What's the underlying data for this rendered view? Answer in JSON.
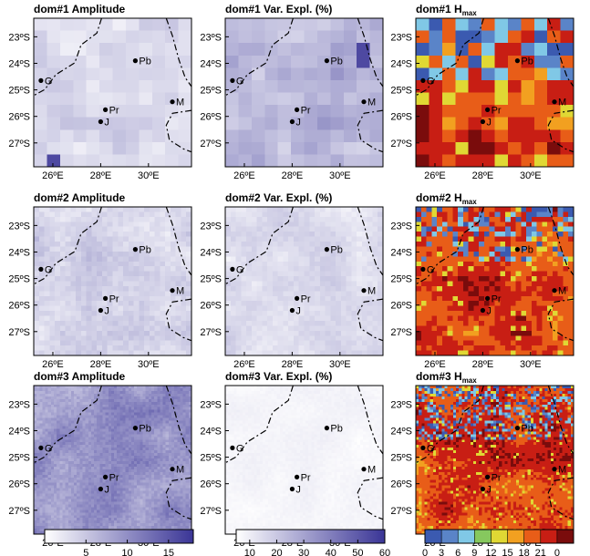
{
  "chart_data": [
    {
      "id": "p11",
      "type": "heatmap",
      "title": "dom#1 Amplitude",
      "colormap": "amp",
      "res": 12,
      "lo": 0.05,
      "hi": 0.35,
      "seed": 11,
      "spot": [
        0.1,
        0.96,
        0.9
      ],
      "xticks": [
        "26ºE",
        "28ºE",
        "30ºE"
      ],
      "yticks": [
        "23ºS",
        "24ºS",
        "25ºS",
        "26ºS",
        "27ºS"
      ]
    },
    {
      "id": "p12",
      "type": "heatmap",
      "title": "dom#1 Var. Expl. (%)",
      "colormap": "var",
      "res": 12,
      "lo": 0.18,
      "hi": 0.55,
      "seed": 12,
      "spot": [
        0.82,
        0.2,
        0.9
      ],
      "xticks": [
        "26ºE",
        "28ºE",
        "30ºE"
      ],
      "yticks": [
        "23ºS",
        "24ºS",
        "25ºS",
        "26ºS",
        "27ºS"
      ]
    },
    {
      "id": "p13",
      "type": "heatmap",
      "title": "dom#1 H",
      "title_sub": "max",
      "colormap": "hmax",
      "res": 12,
      "seed": 13,
      "xticks": [
        "26ºE",
        "28ºE",
        "30ºE"
      ],
      "yticks": [
        "23ºS",
        "24ºS",
        "25ºS",
        "26ºS",
        "27ºS"
      ]
    },
    {
      "id": "p21",
      "type": "heatmap",
      "title": "dom#2 Amplitude",
      "colormap": "amp",
      "res": 30,
      "lo": 0.05,
      "hi": 0.4,
      "seed": 21,
      "xticks": [
        "26ºE",
        "28ºE",
        "30ºE"
      ],
      "yticks": [
        "23ºS",
        "24ºS",
        "25ºS",
        "26ºS",
        "27ºS"
      ]
    },
    {
      "id": "p22",
      "type": "heatmap",
      "title": "dom#2 Var. Expl. (%)",
      "colormap": "var",
      "res": 30,
      "lo": 0.05,
      "hi": 0.3,
      "seed": 22,
      "xticks": [
        "26ºE",
        "28ºE",
        "30ºE"
      ],
      "yticks": [
        "23ºS",
        "24ºS",
        "25ºS",
        "26ºS",
        "27ºS"
      ]
    },
    {
      "id": "p23",
      "type": "heatmap",
      "title": "dom#2 H",
      "title_sub": "max",
      "colormap": "hmax",
      "res": 30,
      "seed": 23,
      "xticks": [
        "26ºE",
        "28ºE",
        "30ºE"
      ],
      "yticks": [
        "23ºS",
        "24ºS",
        "25ºS",
        "26ºS",
        "27ºS"
      ]
    },
    {
      "id": "p31",
      "type": "heatmap",
      "title": "dom#3 Amplitude",
      "colormap": "amp",
      "res": 55,
      "lo": 0.3,
      "hi": 0.75,
      "seed": 31,
      "xticks": [
        "26ºE",
        "28ºE",
        "30ºE"
      ],
      "yticks": [
        "23ºS",
        "24ºS",
        "25ºS",
        "26ºS",
        "27ºS"
      ]
    },
    {
      "id": "p32",
      "type": "heatmap",
      "title": "dom#3 Var. Expl. (%)",
      "colormap": "var",
      "res": 55,
      "lo": 0.0,
      "hi": 0.1,
      "seed": 32,
      "xticks": [
        "26ºE",
        "28ºE",
        "30ºE"
      ],
      "yticks": [
        "23ºS",
        "24ºS",
        "25ºS",
        "26ºS",
        "27ºS"
      ]
    },
    {
      "id": "p33",
      "type": "heatmap",
      "title": "dom#3 H",
      "title_sub": "max",
      "colormap": "hmax",
      "res": 55,
      "seed": 33,
      "xticks": [
        "26ºE",
        "28ºE",
        "30ºE"
      ],
      "yticks": [
        "23ºS",
        "24ºS",
        "25ºS",
        "26ºS",
        "27ºS"
      ]
    }
  ],
  "cities": [
    {
      "name": "Pb",
      "lon": 29.45,
      "lat": 23.9
    },
    {
      "name": "G",
      "lon": 25.5,
      "lat": 24.65
    },
    {
      "name": "Pr",
      "lon": 28.2,
      "lat": 25.75
    },
    {
      "name": "J",
      "lon": 28.0,
      "lat": 26.2
    },
    {
      "name": "M",
      "lon": 31.0,
      "lat": 25.45
    }
  ],
  "colorbars": [
    {
      "id": "amp",
      "ticks": [
        "5",
        "10",
        "15"
      ],
      "min": 0,
      "max": 18,
      "values": [
        5,
        10,
        15
      ],
      "colors": [
        "#ffffff",
        "#3a3596"
      ]
    },
    {
      "id": "var",
      "ticks": [
        "10",
        "20",
        "30",
        "40",
        "50",
        "60"
      ],
      "min": 5,
      "max": 60,
      "values": [
        10,
        20,
        30,
        40,
        50,
        60
      ],
      "colors": [
        "#ffffff",
        "#3a3596"
      ]
    },
    {
      "id": "hmax",
      "ticks": [
        "0",
        "3",
        "6",
        "9",
        "12",
        "15",
        "18",
        "21",
        "0"
      ],
      "colors": [
        "#3b5ab0",
        "#5a84c8",
        "#80c8e6",
        "#86c85e",
        "#e0d834",
        "#f2a020",
        "#e85d18",
        "#c81e14",
        "#7a0c0c"
      ]
    }
  ]
}
